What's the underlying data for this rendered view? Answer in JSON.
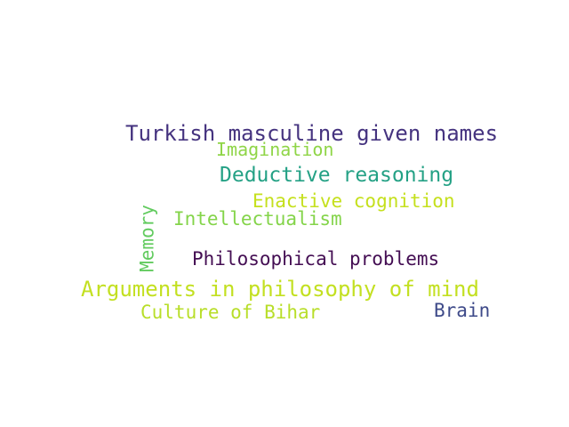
{
  "words": [
    {
      "text": "Turkish masculine given names",
      "color": "#45337f"
    },
    {
      "text": "Imagination",
      "color": "#8fd547"
    },
    {
      "text": "Deductive reasoning",
      "color": "#24a185"
    },
    {
      "text": "Enactive cognition",
      "color": "#c5e01d"
    },
    {
      "text": "Intellectualism",
      "color": "#84d44a"
    },
    {
      "text": "Memory",
      "color": "#62cb5f"
    },
    {
      "text": "Philosophical problems",
      "color": "#440e53"
    },
    {
      "text": "Arguments in philosophy of mind",
      "color": "#c3e021"
    },
    {
      "text": "Culture of Bihar",
      "color": "#b8de29"
    },
    {
      "text": "Brain",
      "color": "#3e4a89"
    }
  ]
}
